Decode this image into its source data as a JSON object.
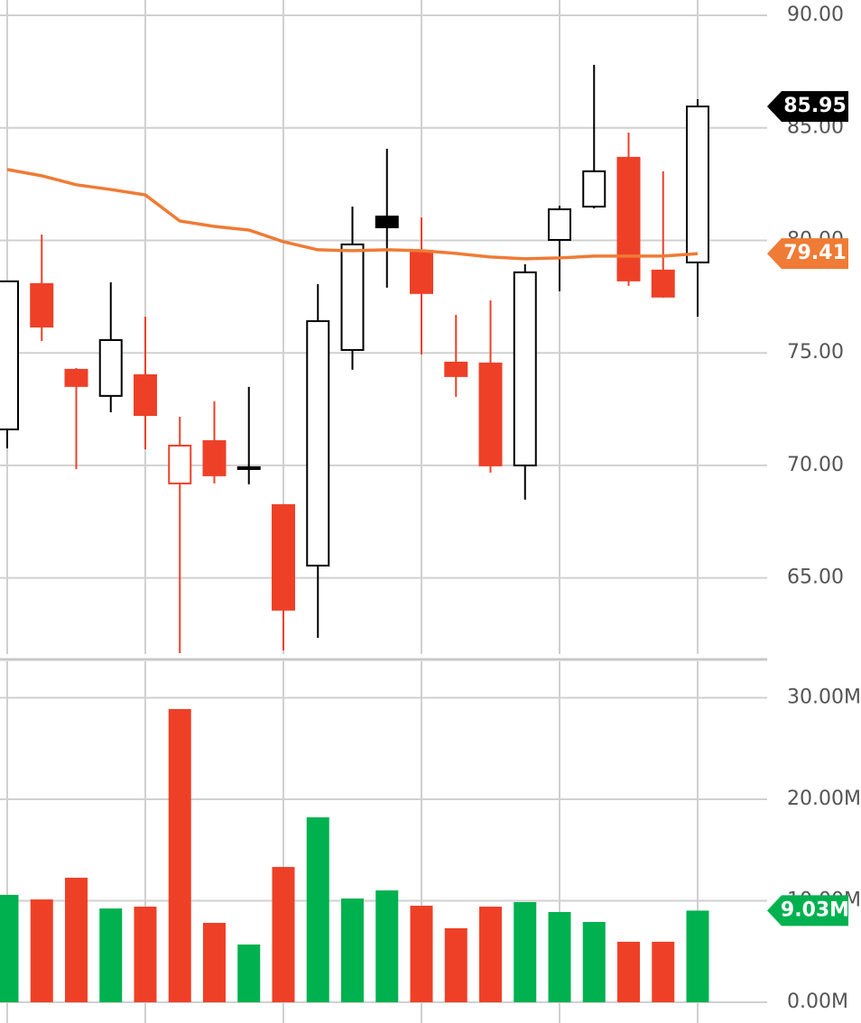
{
  "chart_data": [
    {
      "type": "candlestick",
      "categories": [
        null,
        null,
        null,
        null,
        null,
        null,
        null,
        null,
        null,
        null,
        null,
        null,
        null,
        null,
        null,
        null,
        null,
        null,
        null,
        null,
        null
      ],
      "open": [
        71.6,
        78.06,
        74.25,
        73.09,
        74.01,
        69.2,
        71.08,
        69.84,
        68.24,
        65.55,
        75.13,
        81.06,
        79.54,
        74.57,
        74.53,
        70.0,
        80.02,
        81.5,
        83.67,
        78.66,
        79.02
      ],
      "high": [
        78.18,
        80.26,
        74.33,
        78.14,
        76.61,
        72.16,
        72.85,
        73.49,
        68.24,
        78.06,
        81.5,
        84.07,
        81.02,
        76.69,
        77.33,
        78.94,
        81.54,
        87.8,
        84.79,
        83.07,
        86.27
      ],
      "low": [
        70.76,
        75.53,
        69.84,
        72.36,
        70.72,
        61.66,
        69.2,
        69.16,
        61.78,
        62.34,
        74.25,
        77.9,
        74.93,
        73.05,
        69.68,
        68.48,
        77.74,
        81.42,
        77.98,
        77.45,
        76.61
      ],
      "close": [
        78.18,
        76.17,
        73.53,
        75.57,
        72.24,
        70.88,
        69.56,
        69.92,
        63.59,
        76.41,
        79.82,
        80.58,
        77.66,
        73.97,
        70.0,
        78.58,
        81.38,
        83.07,
        78.22,
        77.5,
        85.95
      ],
      "last_label": "85.95",
      "up_color": "#000000",
      "down_color": "#ee4027",
      "line": {
        "color": "#ef7b35",
        "values": [
          83.15,
          82.87,
          82.47,
          82.26,
          82.02,
          80.86,
          80.62,
          80.46,
          79.94,
          79.58,
          79.54,
          79.58,
          79.54,
          79.42,
          79.26,
          79.18,
          79.22,
          79.3,
          79.3,
          79.3,
          79.41
        ],
        "last_label": "79.41"
      },
      "ylim": [
        61.62,
        90.68
      ],
      "yticks": [
        {
          "value": 65,
          "label": "65.00"
        },
        {
          "value": 70,
          "label": "70.00"
        },
        {
          "value": 75,
          "label": "75.00"
        },
        {
          "value": 80,
          "label": "80.00"
        },
        {
          "value": 85,
          "label": "85.00"
        },
        {
          "value": 90,
          "label": "90.00"
        }
      ],
      "grid": true
    },
    {
      "type": "bar",
      "categories": [
        null,
        null,
        null,
        null,
        null,
        null,
        null,
        null,
        null,
        null,
        null,
        null,
        null,
        null,
        null,
        null,
        null,
        null,
        null,
        null,
        null
      ],
      "values": [
        10.58,
        10.13,
        12.27,
        9.24,
        9.42,
        28.89,
        7.82,
        5.69,
        13.33,
        18.22,
        10.22,
        11.02,
        9.51,
        7.29,
        9.42,
        9.87,
        8.89,
        7.91,
        5.96,
        5.96,
        9.03
      ],
      "last_label": "9.03M",
      "up_color": "#00b14f",
      "down_color": "#ee4027",
      "ylim": [
        0,
        33.6
      ],
      "yticks": [
        {
          "value": 0,
          "label": "0.00M"
        },
        {
          "value": 10,
          "label": "10.00M"
        },
        {
          "value": 20,
          "label": "20.00M"
        },
        {
          "value": 30,
          "label": "30.00M"
        }
      ],
      "grid": true
    }
  ]
}
